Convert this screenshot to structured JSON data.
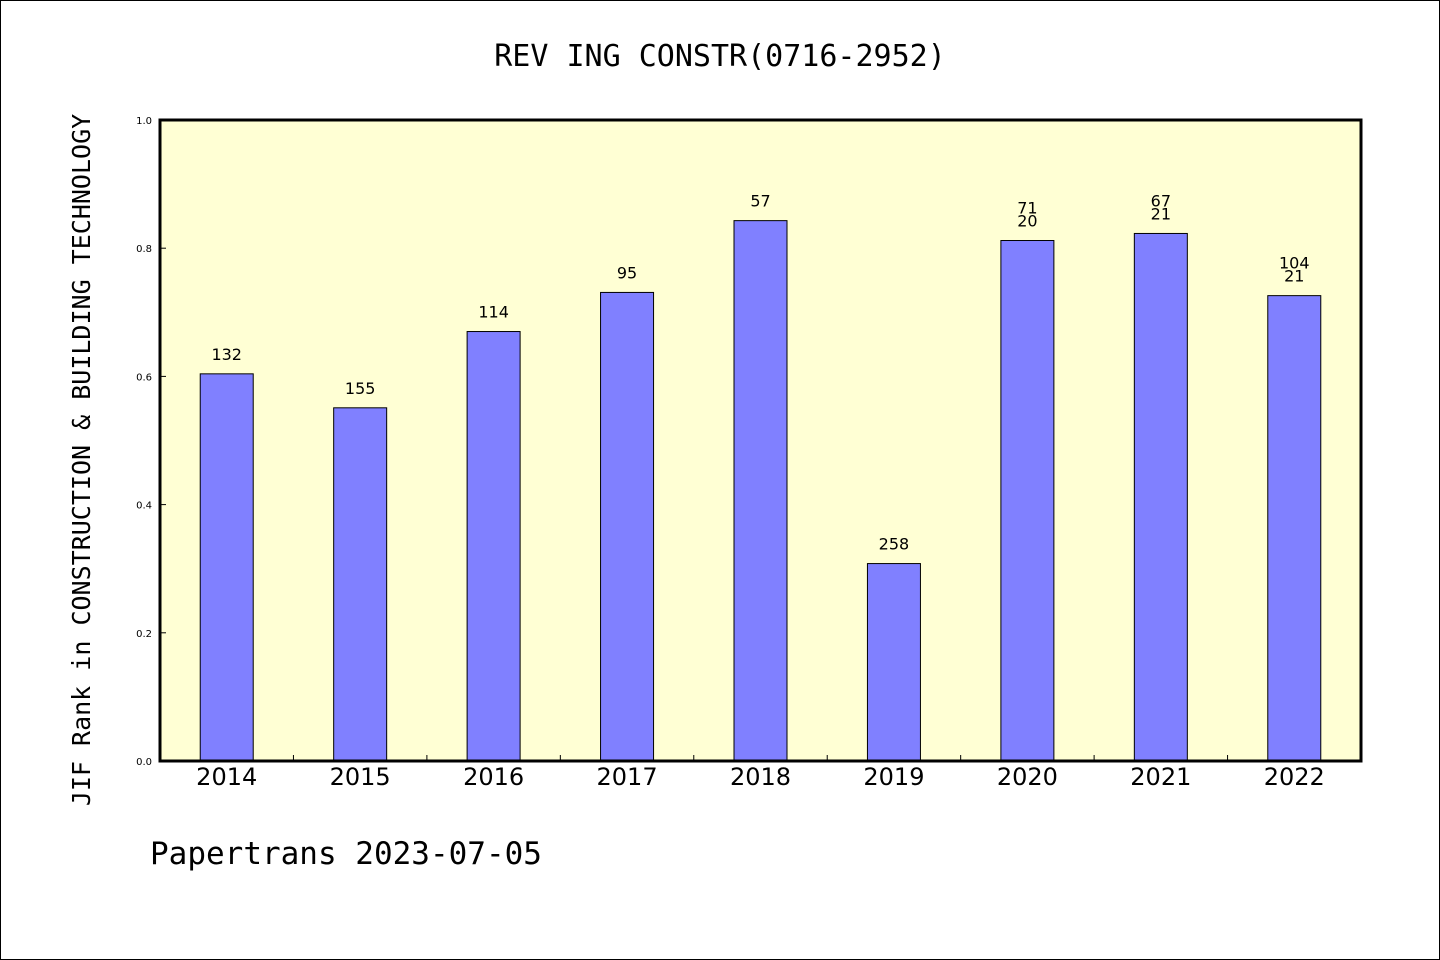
{
  "footer": "Papertrans 2023-07-05",
  "chart_data": {
    "type": "bar",
    "title": "REV ING CONSTR(0716-2952)",
    "xlabel": "",
    "ylabel": "JIF Rank in CONSTRUCTION & BUILDING TECHNOLOGY",
    "ylim": [
      0,
      1.0
    ],
    "yticks": [
      "0.0",
      "0.2",
      "0.4",
      "0.6",
      "0.8",
      "1.0"
    ],
    "grid": false,
    "categories": [
      "2014",
      "2015",
      "2016",
      "2017",
      "2018",
      "2019",
      "2020",
      "2021",
      "2022"
    ],
    "values": [
      0.604,
      0.551,
      0.67,
      0.731,
      0.843,
      0.308,
      0.812,
      0.823,
      0.726
    ],
    "labels": [
      [
        "132"
      ],
      [
        "155"
      ],
      [
        "114"
      ],
      [
        "95"
      ],
      [
        "57"
      ],
      [
        "258"
      ],
      [
        "71",
        "20"
      ],
      [
        "67",
        "21"
      ],
      [
        "104",
        "21"
      ]
    ],
    "colors": {
      "bar": "#8080ff",
      "plot_background": "#ffffd4",
      "axes": "#000000"
    }
  }
}
